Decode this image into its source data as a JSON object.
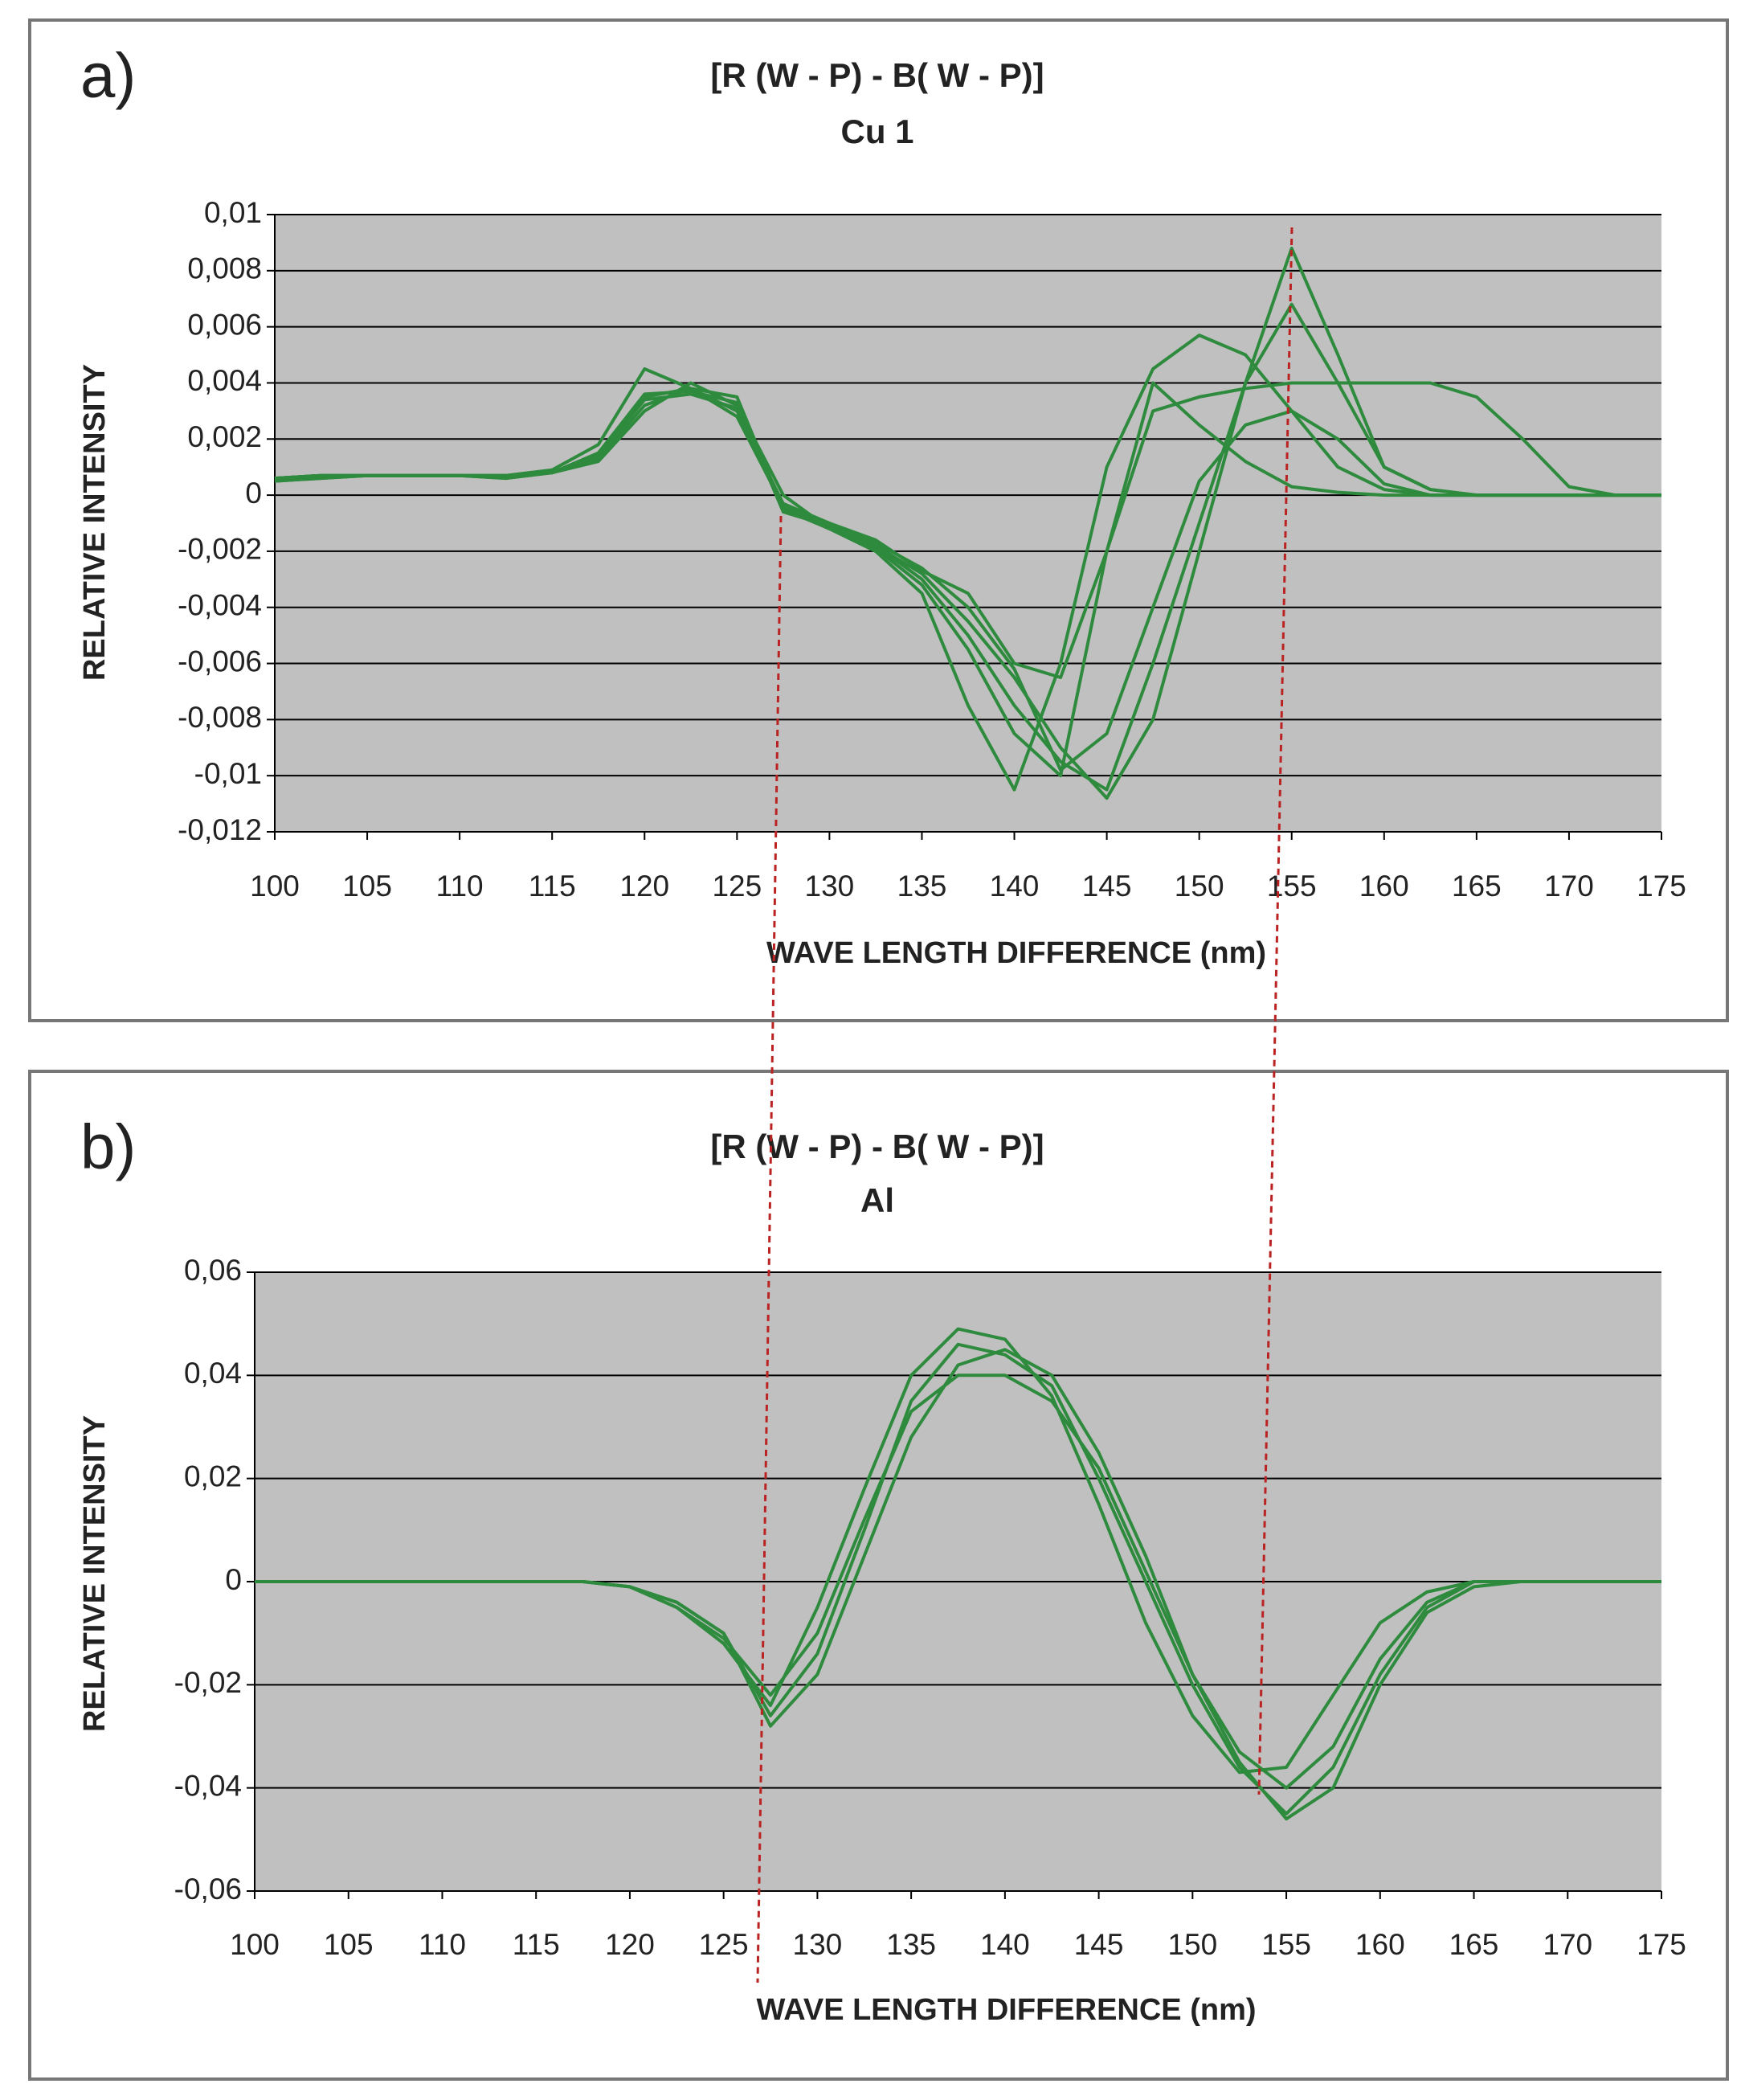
{
  "chart_data": [
    {
      "type": "line",
      "label": "a)",
      "title": "[R (W - P) - B( W - P)]",
      "subtitle": "Cu 1",
      "x_label": "WAVE LENGTH DIFFERENCE (nm)",
      "y_label": "RELATIVE  INTENSITY",
      "x": [
        100,
        102.5,
        105,
        107.5,
        110,
        112.5,
        115,
        117.5,
        120,
        122.5,
        125,
        127.5,
        130,
        132.5,
        135,
        137.5,
        140,
        142.5,
        145,
        147.5,
        150,
        152.5,
        155,
        157.5,
        160,
        162.5,
        165,
        167.5,
        170,
        172.5,
        175
      ],
      "series": [
        {
          "color": "#2e8b3e",
          "values": [
            0.0006,
            0.0007,
            0.0007,
            0.0007,
            0.0007,
            0.0007,
            0.0008,
            0.0012,
            0.003,
            0.004,
            0.0032,
            0,
            -0.0012,
            -0.0018,
            -0.003,
            -0.005,
            -0.0075,
            -0.0095,
            -0.0105,
            -0.006,
            -0.001,
            0.004,
            0.0088,
            0.005,
            0.001,
            0.0002,
            0,
            0,
            0,
            0,
            0
          ]
        },
        {
          "color": "#2e8b3e",
          "values": [
            0.0005,
            0.0006,
            0.0007,
            0.0007,
            0.0007,
            0.0006,
            0.0008,
            0.0015,
            0.0035,
            0.0038,
            0.003,
            -0.0003,
            -0.001,
            -0.0018,
            -0.0028,
            -0.0045,
            -0.0065,
            -0.009,
            -0.0108,
            -0.008,
            -0.002,
            0.004,
            0.0068,
            0.004,
            0.001,
            0.0002,
            0,
            0,
            0,
            0,
            0
          ]
        },
        {
          "color": "#2e8b3e",
          "values": [
            0.0006,
            0.0007,
            0.0007,
            0.0007,
            0.0007,
            0.0007,
            0.0009,
            0.0018,
            0.0045,
            0.0038,
            0.0028,
            -0.0004,
            -0.001,
            -0.0016,
            -0.0027,
            -0.0035,
            -0.006,
            -0.0065,
            -0.002,
            0.003,
            0.0035,
            0.0038,
            0.004,
            0.004,
            0.004,
            0.004,
            0.0035,
            0.002,
            0.0003,
            0,
            0
          ]
        },
        {
          "color": "#2e8b3e",
          "values": [
            0.0006,
            0.0007,
            0.0007,
            0.0007,
            0.0007,
            0.0007,
            0.0008,
            0.0013,
            0.0032,
            0.0038,
            0.0035,
            -0.0005,
            -0.0012,
            -0.002,
            -0.0035,
            -0.0075,
            -0.0105,
            -0.006,
            0.001,
            0.0045,
            0.0057,
            0.005,
            0.003,
            0.001,
            0.0002,
            0,
            0,
            0,
            0,
            0,
            0
          ]
        },
        {
          "color": "#2e8b3e",
          "values": [
            0.0005,
            0.0006,
            0.0007,
            0.0007,
            0.0007,
            0.0007,
            0.0008,
            0.0015,
            0.0036,
            0.0037,
            0.0033,
            -0.0006,
            -0.0011,
            -0.0019,
            -0.0032,
            -0.0055,
            -0.0085,
            -0.01,
            -0.002,
            0.004,
            0.0025,
            0.0012,
            0.0003,
            0.0001,
            0,
            0,
            0,
            0,
            0,
            0,
            0
          ]
        },
        {
          "color": "#2e8b3e",
          "values": [
            0.0006,
            0.0007,
            0.0007,
            0.0007,
            0.0007,
            0.0006,
            0.0008,
            0.0014,
            0.0034,
            0.0036,
            0.0031,
            -0.0004,
            -0.0011,
            -0.0017,
            -0.0026,
            -0.004,
            -0.0062,
            -0.0098,
            -0.0085,
            -0.004,
            0.0005,
            0.0025,
            0.003,
            0.002,
            0.0004,
            0,
            0,
            0,
            0,
            0,
            0
          ]
        }
      ],
      "xlim": [
        100,
        175
      ],
      "xticks": [
        100,
        105,
        110,
        115,
        120,
        125,
        130,
        135,
        140,
        145,
        150,
        155,
        160,
        165,
        170,
        175
      ],
      "ylim": [
        -0.012,
        0.01
      ],
      "yticks": [
        {
          "value": 0.01,
          "label": "0,01"
        },
        {
          "value": 0.008,
          "label": "0,008"
        },
        {
          "value": 0.006,
          "label": "0,006"
        },
        {
          "value": 0.004,
          "label": "0,004"
        },
        {
          "value": 0.002,
          "label": "0,002"
        },
        0,
        {
          "value": -0.002,
          "label": "-0,002"
        },
        {
          "value": -0.004,
          "label": "-0,004"
        },
        {
          "value": -0.006,
          "label": "-0,006"
        },
        {
          "value": -0.008,
          "label": "-0,008"
        },
        {
          "value": -0.01,
          "label": "-0,01"
        },
        {
          "value": -0.012,
          "label": "-0,012"
        }
      ],
      "grid": true
    },
    {
      "type": "line",
      "label": "b)",
      "title": "[R (W - P) - B( W - P)]",
      "subtitle": "Al",
      "x_label": "WAVE LENGTH DIFFERENCE (nm)",
      "y_label": "RELATIVE INTENSITY",
      "x": [
        100,
        102.5,
        105,
        107.5,
        110,
        112.5,
        115,
        117.5,
        120,
        122.5,
        125,
        127.5,
        130,
        132.5,
        135,
        137.5,
        140,
        142.5,
        145,
        147.5,
        150,
        152.5,
        155,
        157.5,
        160,
        162.5,
        165,
        167.5,
        170,
        172.5,
        175
      ],
      "series": [
        {
          "color": "#2e8b3e",
          "values": [
            0,
            0,
            0,
            0,
            0,
            0,
            0,
            0,
            -0.001,
            -0.005,
            -0.012,
            -0.024,
            -0.005,
            0.018,
            0.04,
            0.049,
            0.047,
            0.036,
            0.015,
            -0.008,
            -0.026,
            -0.037,
            -0.036,
            -0.022,
            -0.008,
            -0.002,
            0,
            0,
            0,
            0,
            0
          ]
        },
        {
          "color": "#2e8b3e",
          "values": [
            0,
            0,
            0,
            0,
            0,
            0,
            0,
            0,
            -0.001,
            -0.004,
            -0.01,
            -0.028,
            -0.018,
            0.005,
            0.028,
            0.042,
            0.045,
            0.04,
            0.025,
            0.005,
            -0.018,
            -0.035,
            -0.046,
            -0.04,
            -0.02,
            -0.006,
            -0.001,
            0,
            0,
            0,
            0
          ]
        },
        {
          "color": "#2e8b3e",
          "values": [
            0,
            0,
            0,
            0,
            0,
            0,
            0,
            0,
            -0.001,
            -0.005,
            -0.011,
            -0.022,
            -0.01,
            0.012,
            0.033,
            0.04,
            0.04,
            0.035,
            0.022,
            0.002,
            -0.018,
            -0.033,
            -0.04,
            -0.032,
            -0.015,
            -0.004,
            0,
            0,
            0,
            0,
            0
          ]
        },
        {
          "color": "#2e8b3e",
          "values": [
            0,
            0,
            0,
            0,
            0,
            0,
            0,
            0,
            -0.001,
            -0.004,
            -0.01,
            -0.026,
            -0.014,
            0.01,
            0.035,
            0.046,
            0.044,
            0.038,
            0.02,
            0,
            -0.02,
            -0.036,
            -0.045,
            -0.036,
            -0.018,
            -0.005,
            0,
            0,
            0,
            0,
            0
          ]
        }
      ],
      "xlim": [
        100,
        175
      ],
      "xticks": [
        100,
        105,
        110,
        115,
        120,
        125,
        130,
        135,
        140,
        145,
        150,
        155,
        160,
        165,
        170,
        175
      ],
      "ylim": [
        -0.06,
        0.06
      ],
      "yticks": [
        {
          "value": 0.06,
          "label": "0,06"
        },
        {
          "value": 0.04,
          "label": "0,04"
        },
        {
          "value": 0.02,
          "label": "0,02"
        },
        0,
        {
          "value": -0.02,
          "label": "-0,02"
        },
        {
          "value": -0.04,
          "label": "-0,04"
        },
        {
          "value": -0.06,
          "label": "-0,06"
        }
      ],
      "grid": true
    }
  ]
}
